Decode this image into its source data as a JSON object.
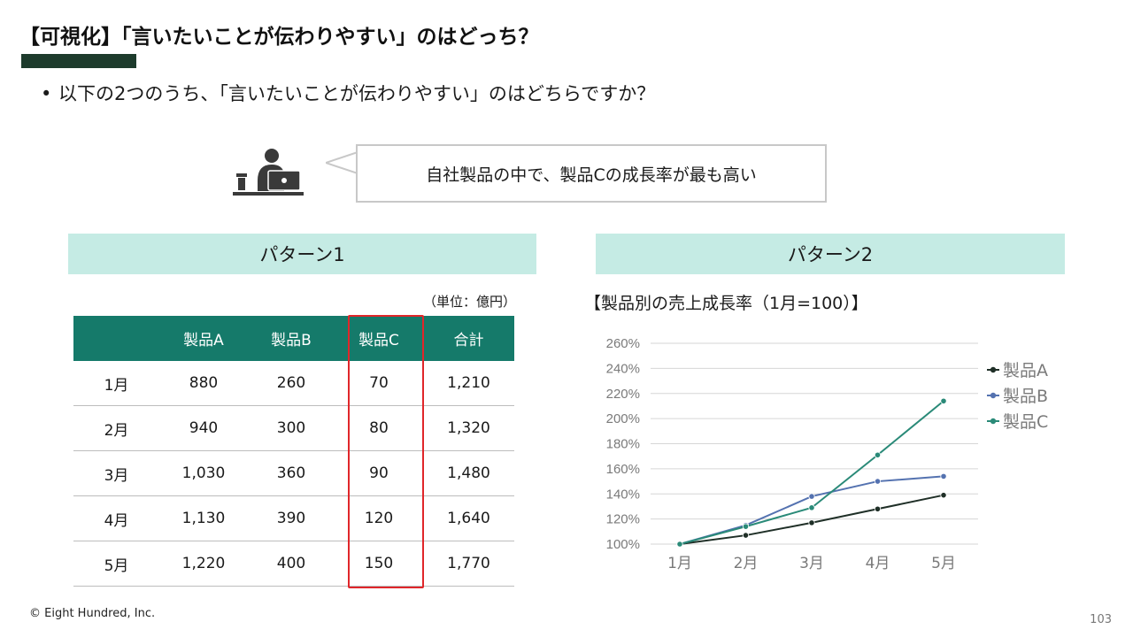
{
  "title": "【可視化】「言いたいことが伝わりやすい」のはどっち？",
  "bullet": "以下の2つのうち、「言いたいことが伝わりやすい」のはどちらですか？",
  "speech": "自社製品の中で、製品Cの成長率が最も高い",
  "pattern1": {
    "label": "パターン1",
    "unit": "（単位：億円）",
    "headers": [
      "",
      "製品A",
      "製品B",
      "製品C",
      "合計"
    ],
    "rows": [
      [
        "1月",
        "880",
        "260",
        "70",
        "1,210"
      ],
      [
        "2月",
        "940",
        "300",
        "80",
        "1,320"
      ],
      [
        "3月",
        "1,030",
        "360",
        "90",
        "1,480"
      ],
      [
        "4月",
        "1,130",
        "390",
        "120",
        "1,640"
      ],
      [
        "5月",
        "1,220",
        "400",
        "150",
        "1,770"
      ]
    ]
  },
  "pattern2": {
    "label": "パターン2",
    "chart_title": "【製品別の売上成長率（1月=100）】"
  },
  "chart_data": {
    "type": "line",
    "title": "【製品別の売上成長率（1月=100）】",
    "categories": [
      "1月",
      "2月",
      "3月",
      "4月",
      "5月"
    ],
    "yticks": [
      "100%",
      "120%",
      "140%",
      "160%",
      "180%",
      "200%",
      "220%",
      "240%",
      "260%"
    ],
    "ylim": [
      100,
      260
    ],
    "grid": true,
    "legend": "top-right",
    "series": [
      {
        "name": "製品A",
        "color": "#1f2f27",
        "values": [
          100,
          107,
          117,
          128,
          139
        ]
      },
      {
        "name": "製品B",
        "color": "#5472b0",
        "values": [
          100,
          115,
          138,
          150,
          154
        ]
      },
      {
        "name": "製品C",
        "color": "#2a8a78",
        "values": [
          100,
          114,
          129,
          171,
          214
        ]
      }
    ]
  },
  "footer": "© Eight Hundred, Inc.",
  "page_number": "103",
  "colors": {
    "title_bar": "#1d3b2c",
    "pattern_header_bg": "#c5ebe4",
    "table_header_bg": "#157a6a",
    "highlight_border": "#e0262a"
  },
  "icons": {
    "presenter": "person-at-laptop-icon"
  }
}
